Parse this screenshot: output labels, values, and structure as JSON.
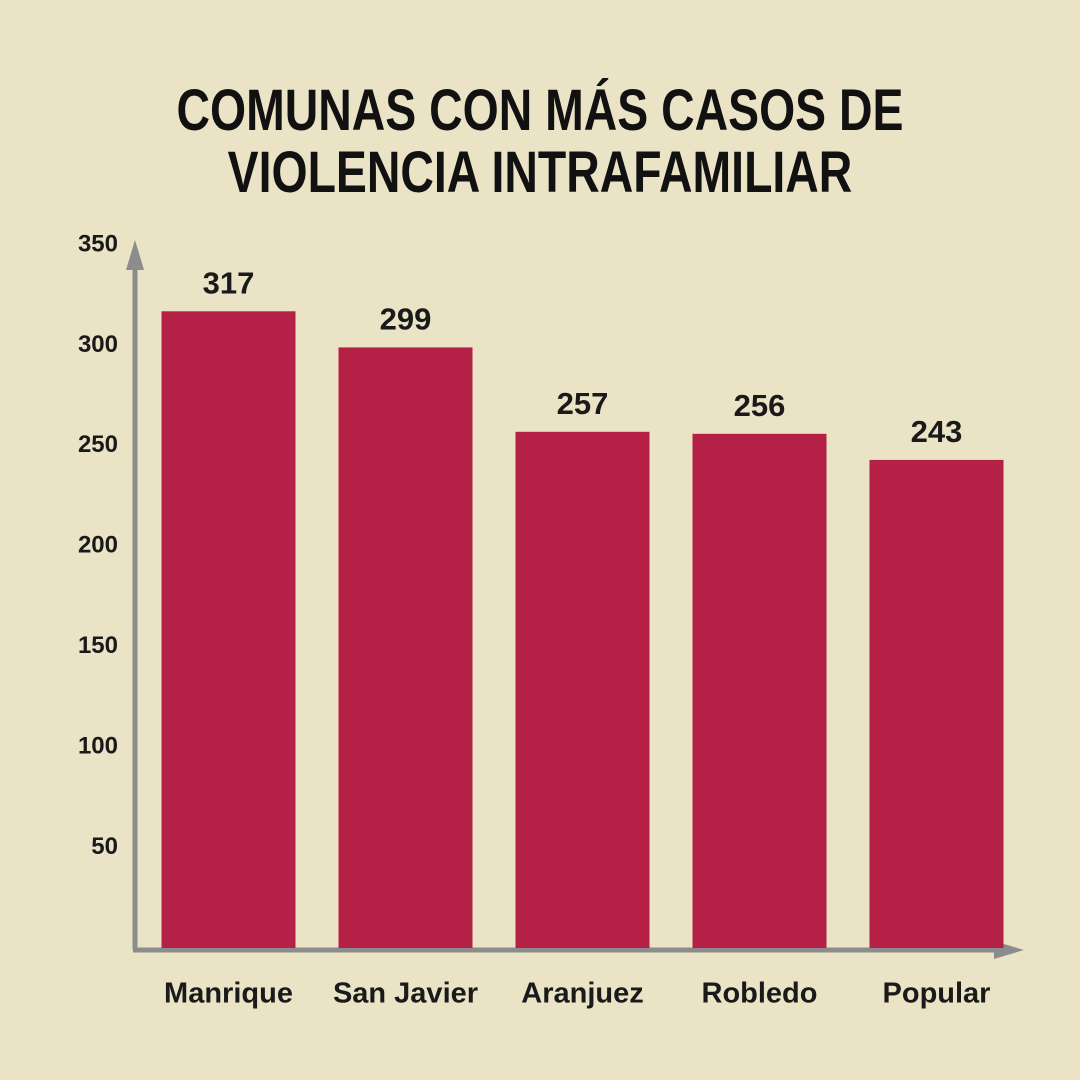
{
  "chart_data": {
    "type": "bar",
    "title": "COMUNAS CON MÁS CASOS DE VIOLENCIA INTRAFAMILIAR",
    "categories": [
      "Manrique",
      "San Javier",
      "Aranjuez",
      "Robledo",
      "Popular"
    ],
    "values": [
      317,
      299,
      257,
      256,
      243
    ],
    "color": "#b52047",
    "ylim": [
      0,
      350
    ],
    "yticks": [
      50,
      100,
      150,
      200,
      250,
      300,
      350
    ],
    "grid": false
  }
}
